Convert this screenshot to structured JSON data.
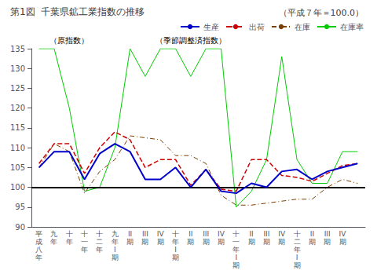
{
  "chart_data": {
    "type": "line",
    "title": "第1図  千葉県鉱工業指数の推移",
    "subtitle": "（平成７年＝100.0）",
    "annotations": [
      {
        "text": "（原指数）",
        "category_index": 1
      },
      {
        "text": "（季節調整済指数）",
        "category_index": 8
      }
    ],
    "categories": [
      "平\n成\n八\n年",
      "九\n年",
      "十\n年",
      "十\n一\n年",
      "十\n二\n年",
      "九\n年\nI\n期",
      "II\n期",
      "III\n期",
      "IV\n期",
      "十\n年\nI\n期",
      "II\n期",
      "III\n期",
      "IV\n期",
      "十\n一\n年\nI\n期",
      "II\n期",
      "III\n期",
      "IV\n期",
      "十\n二\n年\nI\n期",
      "II\n期",
      "III\n期",
      "IV\n期",
      null
    ],
    "series": [
      {
        "name": "生産",
        "color": "#0000cc",
        "line_style": "solid",
        "values": [
          105.0,
          109.0,
          109.0,
          102.0,
          108.5,
          111.0,
          109.0,
          102.0,
          102.0,
          105.0,
          100.0,
          104.5,
          99.0,
          98.5,
          101.0,
          100.0,
          104.0,
          104.5,
          102.0,
          104.0,
          105.0,
          106.0
        ]
      },
      {
        "name": "出荷",
        "color": "#cc0000",
        "line_style": "dashed",
        "values": [
          106.0,
          111.0,
          111.0,
          103.5,
          110.0,
          114.0,
          112.0,
          105.0,
          107.0,
          107.0,
          100.5,
          104.5,
          99.5,
          99.0,
          107.0,
          107.0,
          103.0,
          102.5,
          101.5,
          103.5,
          105.5,
          106.0
        ]
      },
      {
        "name": "在庫",
        "color": "#7b3f00",
        "line_style": "dashdot",
        "values": [
          105.0,
          111.0,
          109.0,
          98.5,
          104.0,
          107.0,
          113.0,
          112.5,
          112.0,
          108.0,
          108.0,
          106.0,
          98.0,
          95.5,
          95.5,
          96.0,
          96.5,
          97.0,
          97.0,
          100.0,
          102.0,
          101.0
        ]
      },
      {
        "name": "在庫率",
        "color": "#00cc00",
        "line_style": "solid",
        "values": [
          135.0,
          135.0,
          120.0,
          99.0,
          100.0,
          110.0,
          135.0,
          128.0,
          135.0,
          135.0,
          128.0,
          135.0,
          135.0,
          95.0,
          99.0,
          107.0,
          133.0,
          107.0,
          101.0,
          101.0,
          109.0,
          109.0
        ]
      }
    ],
    "reference_line": 100,
    "ylim": [
      90,
      135
    ],
    "yticks": [
      90,
      95,
      100,
      105,
      110,
      115,
      120,
      125,
      130,
      135
    ],
    "grid": false,
    "legend": "upper right"
  }
}
